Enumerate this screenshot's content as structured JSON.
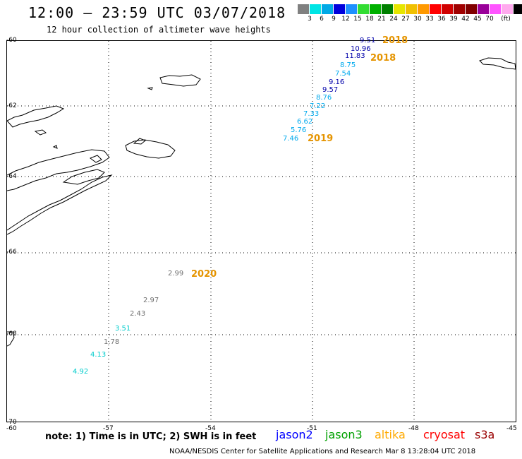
{
  "header": {
    "title": "12:00 – 23:59 UTC 03/07/2018",
    "subtitle": "12 hour collection of altimeter wave heights"
  },
  "colorbar": {
    "colors": [
      "#808080",
      "#00e5e5",
      "#00a9e6",
      "#0000dc",
      "#1e90ff",
      "#33dd33",
      "#00b000",
      "#008000",
      "#e6e600",
      "#f0c000",
      "#ff9900",
      "#ff0000",
      "#d00000",
      "#a00000",
      "#800000",
      "#990099",
      "#ff55ff",
      "#ffaaee",
      "#000000"
    ],
    "labels": [
      "3",
      "6",
      "9",
      "12",
      "15",
      "18",
      "21",
      "24",
      "27",
      "30",
      "33",
      "36",
      "39",
      "42",
      "45",
      "70",
      "(ft)"
    ]
  },
  "axes": {
    "lat_labels": [
      "-60",
      "-62",
      "-64",
      "-66",
      "-68",
      "-70"
    ],
    "lon_labels": [
      "-60",
      "-57",
      "-54",
      "-51",
      "-48",
      "-45"
    ]
  },
  "tracks": {
    "north": [
      {
        "v": "9.51",
        "c": "#0000aa"
      },
      {
        "v": "10.96",
        "c": "#0000aa"
      },
      {
        "v": "11.83",
        "c": "#0000aa"
      },
      {
        "v": "8.75",
        "c": "#00aaee"
      },
      {
        "v": "7.54",
        "c": "#00aaee"
      },
      {
        "v": "9.16",
        "c": "#0000aa"
      },
      {
        "v": "9.57",
        "c": "#0000aa"
      },
      {
        "v": "8.76",
        "c": "#00aaee"
      },
      {
        "v": "7.22",
        "c": "#00aaee"
      },
      {
        "v": "7.33",
        "c": "#00aaee"
      },
      {
        "v": "6.62",
        "c": "#00aaee"
      },
      {
        "v": "5.76",
        "c": "#00aaee"
      },
      {
        "v": "7.46",
        "c": "#00aaee"
      }
    ],
    "north_years": [
      "2018",
      "2018",
      "2019"
    ],
    "south": [
      {
        "v": "2.99",
        "c": "#707070"
      },
      {
        "v": "2.97",
        "c": "#707070"
      },
      {
        "v": "2.43",
        "c": "#707070"
      },
      {
        "v": "3.51",
        "c": "#00cccc"
      },
      {
        "v": "1.78",
        "c": "#707070"
      },
      {
        "v": "4.13",
        "c": "#00cccc"
      },
      {
        "v": "4.92",
        "c": "#00cccc"
      }
    ],
    "south_year": "2020"
  },
  "footer": {
    "note": "note: 1) Time is in UTC; 2) SWH is in feet",
    "satellites": [
      {
        "name": "jason2",
        "color": "#0000ff"
      },
      {
        "name": "jason3",
        "color": "#00a000"
      },
      {
        "name": "altika",
        "color": "#ffaa00"
      },
      {
        "name": "cryosat",
        "color": "#ff0000"
      },
      {
        "name": "s3a",
        "color": "#990000"
      }
    ],
    "credit": "NOAA/NESDIS Center for Satellite Applications and Research   Mar  8 13:28:04 UTC 2018"
  }
}
